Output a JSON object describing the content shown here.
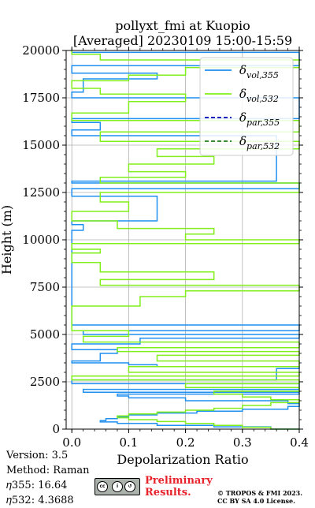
{
  "chart_data": {
    "type": "line",
    "title": [
      "pollyxt_fmi at Kuopio",
      "[Averaged] 20230109 15:00-15:59"
    ],
    "xlabel": "Depolarization Ratio",
    "ylabel": "Height (m)",
    "xlim": [
      -0.01,
      0.4
    ],
    "ylim": [
      0,
      20000
    ],
    "xticks": [
      0.0,
      0.1,
      0.2,
      0.3,
      0.4
    ],
    "xtick_labels": [
      "0.0",
      "0.1",
      "0.2",
      "0.3",
      "0.4"
    ],
    "yticks": [
      0,
      2500,
      5000,
      7500,
      10000,
      12500,
      15000,
      17500,
      20000
    ],
    "ytick_labels": [
      "0",
      "2500",
      "5000",
      "7500",
      "10000",
      "12500",
      "15000",
      "17500",
      "20000"
    ],
    "grid": true,
    "legend_position": "top-right",
    "legend": [
      {
        "label": "δ",
        "sub": "vol,355",
        "color": "#1f8ff0",
        "style": "solid"
      },
      {
        "label": "δ",
        "sub": "vol,532",
        "color": "#80ef1a",
        "style": "solid"
      },
      {
        "label": "δ",
        "sub": "par,355",
        "color": "#0000b4",
        "style": "dashed"
      },
      {
        "label": "δ",
        "sub": "par,532",
        "color": "#1e7a1e",
        "style": "dashed"
      }
    ],
    "series": [
      {
        "name": "δvol,355",
        "color": "#1f8ff0",
        "profile": [
          [
            0,
            0.4
          ],
          [
            120,
            0.35
          ],
          [
            200,
            0.25
          ],
          [
            300,
            0.15
          ],
          [
            380,
            0.08
          ],
          [
            450,
            0.05
          ],
          [
            550,
            0.06
          ],
          [
            650,
            0.08
          ],
          [
            750,
            0.1
          ],
          [
            850,
            0.15
          ],
          [
            950,
            0.22
          ],
          [
            1050,
            0.3
          ],
          [
            1200,
            0.38
          ],
          [
            1350,
            0.4
          ],
          [
            1500,
            0.38
          ],
          [
            1650,
            0.2
          ],
          [
            1750,
            0.1
          ],
          [
            1850,
            0.08
          ],
          [
            1950,
            0.4
          ],
          [
            2100,
            0.02
          ],
          [
            2400,
            0.4
          ],
          [
            2600,
            0.0
          ],
          [
            3200,
            0.36
          ],
          [
            3300,
            0.4
          ],
          [
            3400,
            0.15
          ],
          [
            3500,
            0.1
          ],
          [
            3600,
            0.0
          ],
          [
            4000,
            0.05
          ],
          [
            4200,
            0.08
          ],
          [
            4500,
            0.0
          ],
          [
            4800,
            0.12
          ],
          [
            5000,
            0.4
          ],
          [
            5200,
            0.02
          ],
          [
            5500,
            0.4
          ],
          [
            5600,
            0.0
          ],
          [
            6500,
            0.0
          ],
          [
            10500,
            0.0
          ],
          [
            10800,
            0.02
          ],
          [
            11000,
            0.0
          ],
          [
            12300,
            0.15
          ],
          [
            12700,
            0.0
          ],
          [
            13000,
            0.4
          ],
          [
            13100,
            0.0
          ],
          [
            15500,
            0.36
          ],
          [
            15800,
            0.0
          ],
          [
            16200,
            0.05
          ],
          [
            16400,
            0.0
          ],
          [
            17500,
            0.4
          ],
          [
            17800,
            0.0
          ],
          [
            18500,
            0.02
          ],
          [
            18800,
            0.15
          ],
          [
            19200,
            0.0
          ],
          [
            19900,
            0.4
          ],
          [
            20000,
            0.0
          ]
        ]
      },
      {
        "name": "δvol,532",
        "color": "#80ef1a",
        "profile": [
          [
            0,
            0.4
          ],
          [
            100,
            0.35
          ],
          [
            200,
            0.3
          ],
          [
            300,
            0.25
          ],
          [
            400,
            0.2
          ],
          [
            500,
            0.15
          ],
          [
            600,
            0.1
          ],
          [
            700,
            0.08
          ],
          [
            800,
            0.1
          ],
          [
            900,
            0.15
          ],
          [
            1000,
            0.2
          ],
          [
            1100,
            0.25
          ],
          [
            1250,
            0.3
          ],
          [
            1400,
            0.35
          ],
          [
            1550,
            0.4
          ],
          [
            1700,
            0.35
          ],
          [
            1850,
            0.3
          ],
          [
            2000,
            0.25
          ],
          [
            2200,
            0.4
          ],
          [
            2400,
            0.2
          ],
          [
            2600,
            0.4
          ],
          [
            2800,
            0.0
          ],
          [
            3000,
            0.4
          ],
          [
            3300,
            0.1
          ],
          [
            3600,
            0.4
          ],
          [
            3900,
            0.15
          ],
          [
            4100,
            0.4
          ],
          [
            4300,
            0.08
          ],
          [
            4600,
            0.4
          ],
          [
            4900,
            0.02
          ],
          [
            5200,
            0.1
          ],
          [
            5500,
            0.0
          ],
          [
            6500,
            0.0
          ],
          [
            7000,
            0.12
          ],
          [
            7300,
            0.2
          ],
          [
            7600,
            0.4
          ],
          [
            7900,
            0.05
          ],
          [
            8300,
            0.25
          ],
          [
            8800,
            0.05
          ],
          [
            9300,
            0.0
          ],
          [
            9500,
            0.05
          ],
          [
            9800,
            0.0
          ],
          [
            10000,
            0.4
          ],
          [
            10300,
            0.2
          ],
          [
            10600,
            0.25
          ],
          [
            11000,
            0.08
          ],
          [
            11500,
            0.0
          ],
          [
            12000,
            0.1
          ],
          [
            12500,
            0.05
          ],
          [
            13000,
            0.4
          ],
          [
            13300,
            0.05
          ],
          [
            13600,
            0.2
          ],
          [
            14000,
            0.1
          ],
          [
            14400,
            0.25
          ],
          [
            14800,
            0.15
          ],
          [
            15200,
            0.4
          ],
          [
            15700,
            0.05
          ],
          [
            16300,
            0.4
          ],
          [
            16700,
            0.0
          ],
          [
            17300,
            0.1
          ],
          [
            17700,
            0.2
          ],
          [
            18000,
            0.05
          ],
          [
            18400,
            0.0
          ],
          [
            18700,
            0.1
          ],
          [
            19100,
            0.2
          ],
          [
            19500,
            0.4
          ],
          [
            19800,
            0.05
          ],
          [
            20000,
            0.0
          ]
        ]
      },
      {
        "name": "δpar,355",
        "color": "#0000b4",
        "profile": []
      },
      {
        "name": "δpar,532",
        "color": "#1e7a1e",
        "profile": []
      }
    ]
  },
  "footer": {
    "version": "Version: 3.5",
    "method": "Method: Raman",
    "eta355": "𝜂355:  16.64",
    "eta532": "𝜂532: 4.3688",
    "preliminary_1": "Preliminary",
    "preliminary_2": "Results.",
    "copyright_1": "© TROPOS & FMI 2023.",
    "copyright_2": "CC BY SA 4.0 License."
  }
}
